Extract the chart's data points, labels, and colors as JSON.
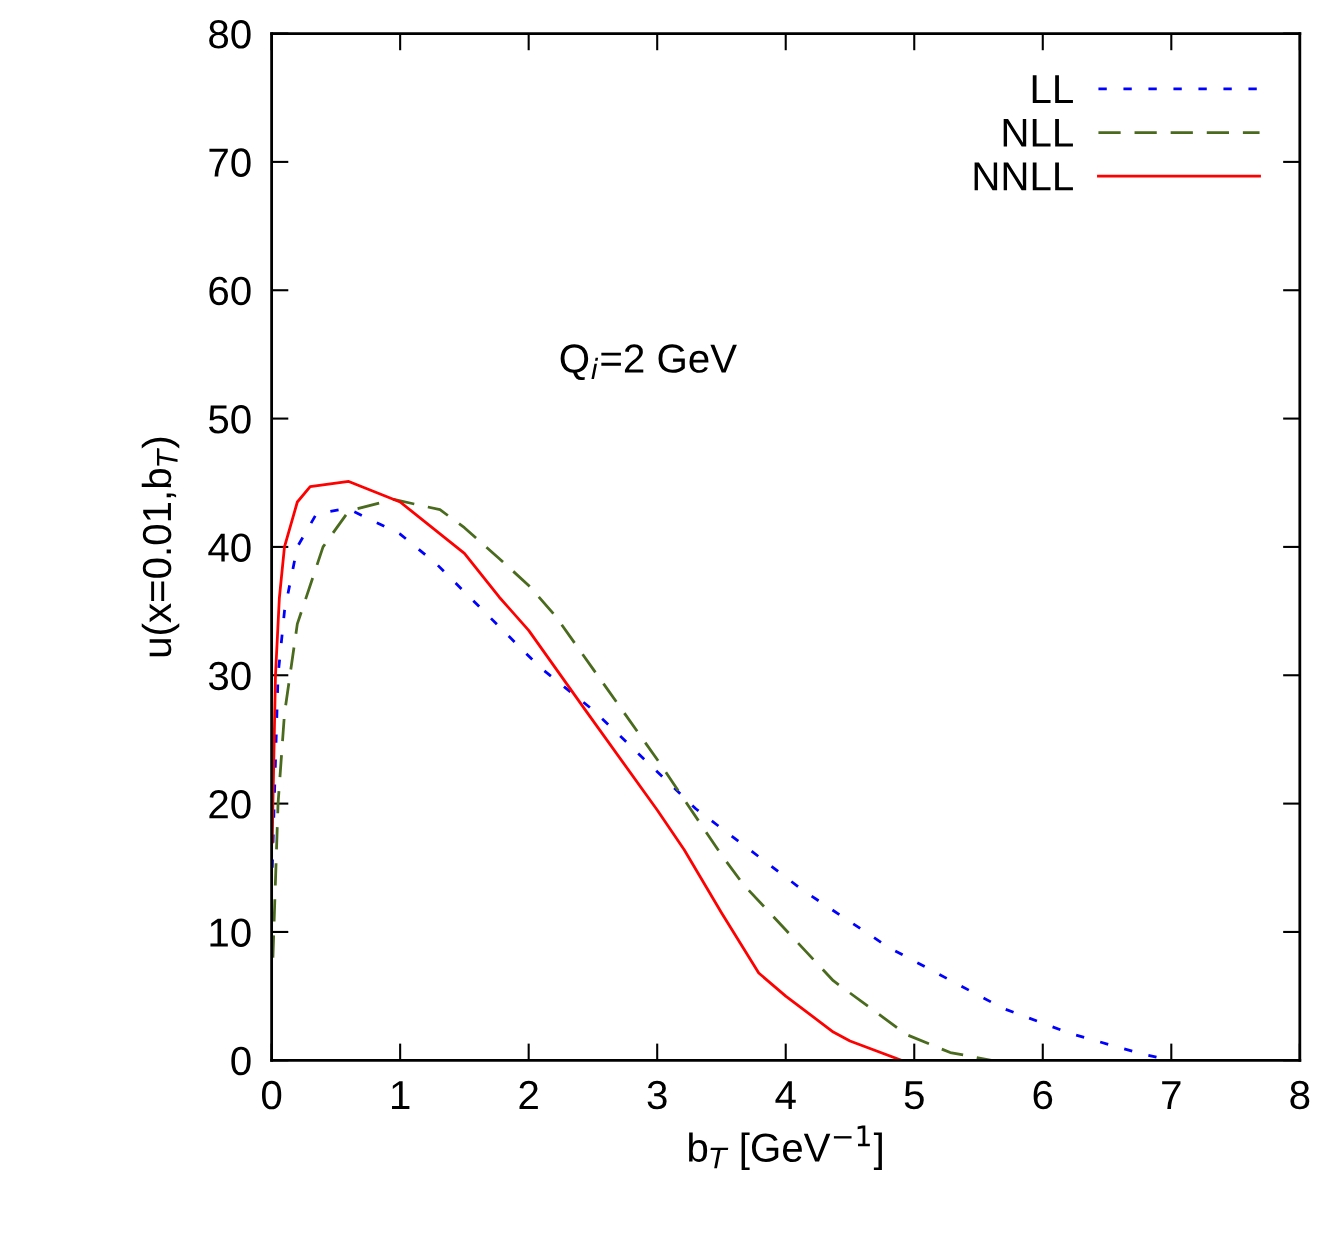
{
  "chart_data": {
    "type": "line",
    "xlabel": "b$_{T}$ [GeV$^{−1}$]",
    "ylabel": "u(x=0.01,b$_{T}$)",
    "xlim": [
      0,
      8
    ],
    "xticks": [
      0,
      1,
      2,
      3,
      4,
      5,
      6,
      7,
      8
    ],
    "ylim": [
      0,
      80
    ],
    "yticks": [
      0,
      10,
      20,
      30,
      40,
      50,
      60,
      70,
      80
    ],
    "grid": false,
    "legend": "top right",
    "annotations": [
      "Q$_{i}$=2 GeV"
    ],
    "series": [
      {
        "name": "LL",
        "color": "#0000ff",
        "line_style": "dotted",
        "x": [
          0.005,
          0.05,
          0.1,
          0.2,
          0.35,
          0.59,
          1.0,
          1.28,
          1.5,
          2.09,
          2.5,
          3.3,
          4.14,
          4.8,
          5.69,
          6.21,
          6.77,
          7.0
        ],
        "values": [
          15,
          30,
          35,
          40,
          42.6,
          43.0,
          41,
          38.7,
          36.5,
          30.6,
          27.3,
          19.6,
          13.2,
          8.8,
          4.05,
          2.1,
          0.5,
          0
        ]
      },
      {
        "name": "NLL",
        "color": "#4a6a1e",
        "line_style": "dashed",
        "x": [
          0.01,
          0.05,
          0.1,
          0.2,
          0.4,
          0.6,
          0.95,
          1.31,
          1.5,
          1.77,
          2.0,
          2.21,
          2.5,
          3.01,
          3.5,
          3.67,
          4.37,
          4.94,
          5.28,
          5.6
        ],
        "values": [
          8,
          20,
          27,
          34,
          40,
          42.8,
          43.7,
          42.9,
          41.5,
          39.1,
          37,
          34.6,
          30.5,
          23.3,
          16,
          13.7,
          6.2,
          2.0,
          0.6,
          0
        ]
      },
      {
        "name": "NNLL",
        "color": "#ff0000",
        "line_style": "solid",
        "x": [
          0.005,
          0.01,
          0.03,
          0.06,
          0.1,
          0.2,
          0.3,
          0.6,
          1.0,
          1.5,
          1.77,
          2.0,
          2.44,
          3.0,
          3.21,
          3.5,
          3.79,
          4.0,
          4.37,
          4.5,
          4.9
        ],
        "values": [
          17,
          20,
          30,
          36,
          40,
          43.5,
          44.7,
          45.1,
          43.5,
          39.5,
          36.1,
          33.5,
          27.3,
          19.5,
          16.4,
          11.5,
          6.8,
          5,
          2.2,
          1.5,
          0
        ]
      }
    ]
  }
}
